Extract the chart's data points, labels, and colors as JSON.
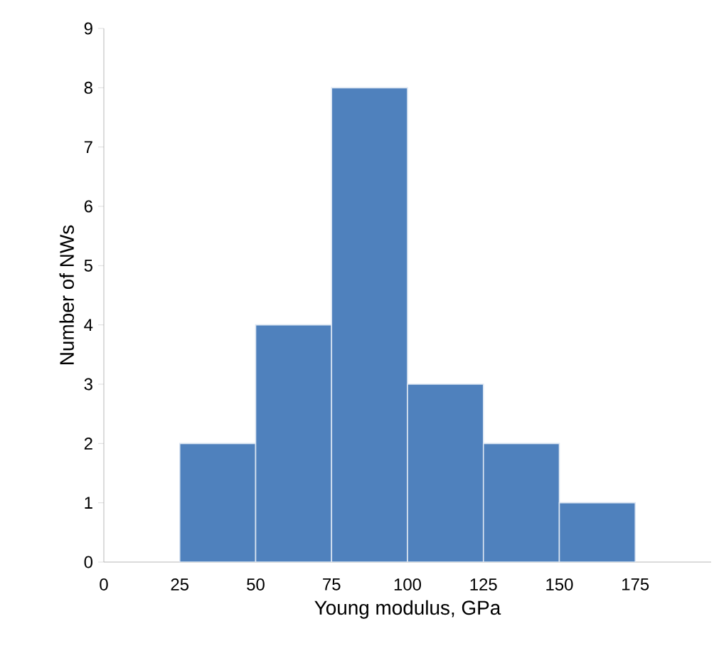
{
  "chart_data": {
    "type": "histogram",
    "xlabel": "Young modulus, GPa",
    "ylabel": "Number of NWs",
    "bins": [
      25,
      50,
      75,
      100,
      125,
      150,
      175
    ],
    "values": [
      2,
      4,
      8,
      3,
      2,
      1
    ],
    "color": "#4f81bd",
    "xlim": [
      0,
      200
    ],
    "ylim": [
      0,
      9
    ],
    "xticks": [
      0,
      25,
      50,
      75,
      100,
      125,
      150,
      175
    ],
    "yticks": [
      0,
      1,
      2,
      3,
      4,
      5,
      6,
      7,
      8,
      9
    ],
    "grid": false
  }
}
